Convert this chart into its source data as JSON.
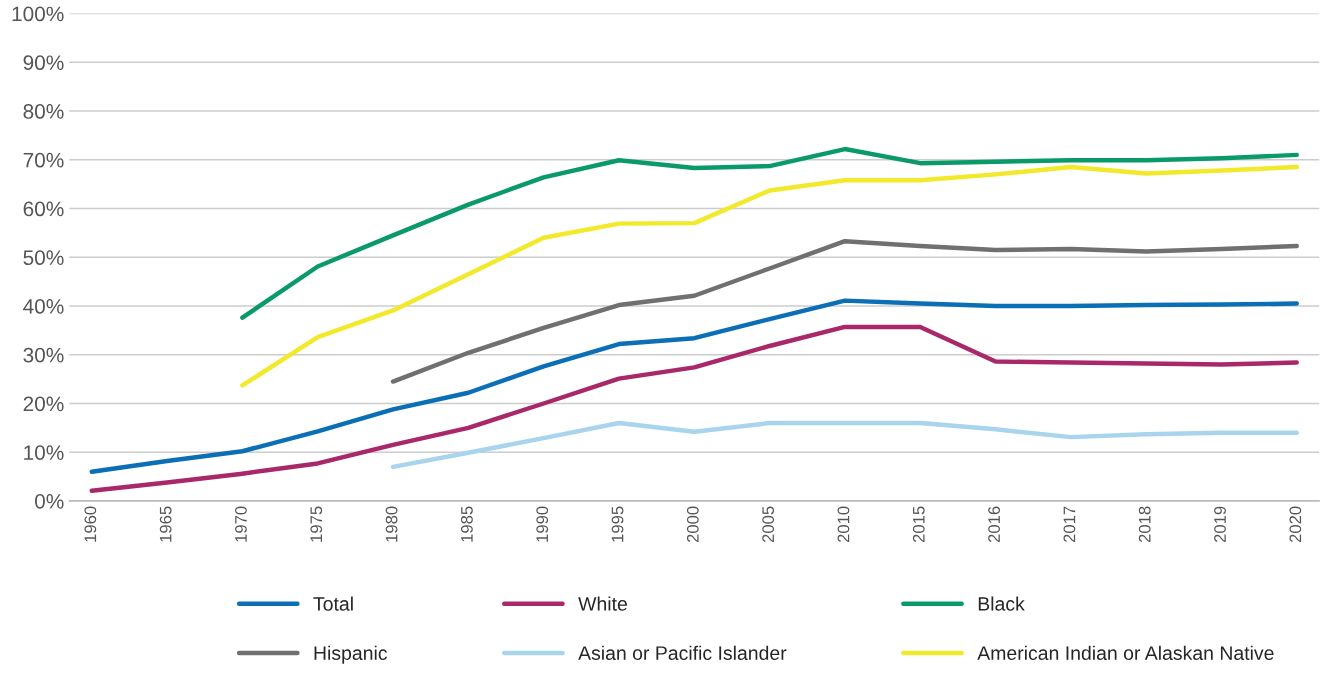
{
  "chart_data": {
    "type": "line",
    "categories": [
      "1960",
      "1965",
      "1970",
      "1975",
      "1980",
      "1985",
      "1990",
      "1995",
      "2000",
      "2005",
      "2010",
      "2015",
      "2016",
      "2017",
      "2018",
      "2019",
      "2020"
    ],
    "series": [
      {
        "name": "Total",
        "color": "#0a6fb5",
        "values": [
          6.0,
          8.2,
          10.2,
          14.3,
          18.8,
          22.2,
          27.6,
          32.2,
          33.4,
          37.3,
          41.1,
          40.5,
          40.0,
          40.0,
          40.2,
          40.3,
          40.5
        ]
      },
      {
        "name": "White",
        "color": "#a9286a",
        "values": [
          2.1,
          3.8,
          5.6,
          7.7,
          11.5,
          15.0,
          20.0,
          25.1,
          27.4,
          31.8,
          35.7,
          35.7,
          28.6,
          28.4,
          28.2,
          28.0,
          28.4
        ]
      },
      {
        "name": "Black",
        "color": "#0a9a6a",
        "values": [
          null,
          null,
          37.6,
          48.1,
          54.5,
          60.8,
          66.4,
          69.9,
          68.3,
          68.7,
          72.2,
          69.3,
          69.6,
          69.9,
          69.9,
          70.3,
          71.0
        ]
      },
      {
        "name": "Hispanic",
        "color": "#707070",
        "values": [
          null,
          null,
          null,
          null,
          24.5,
          30.4,
          35.5,
          40.2,
          42.1,
          47.7,
          53.3,
          52.3,
          51.5,
          51.7,
          51.2,
          51.7,
          52.3
        ]
      },
      {
        "name": "Asian or Pacific Islander",
        "color": "#a8d4ee",
        "values": [
          null,
          null,
          null,
          null,
          7.0,
          9.9,
          12.9,
          16.0,
          14.2,
          16.0,
          16.0,
          16.0,
          14.7,
          13.1,
          13.7,
          14.0,
          14.0
        ]
      },
      {
        "name": "American Indian or Alaskan Native",
        "color": "#f1e92a",
        "values": [
          null,
          null,
          23.7,
          33.6,
          39.1,
          46.5,
          54.0,
          56.9,
          57.0,
          63.7,
          65.8,
          65.8,
          67.0,
          68.5,
          67.2,
          67.8,
          68.5
        ]
      }
    ],
    "ylim": [
      0,
      100
    ],
    "yticks": [
      {
        "value": 0,
        "label": "0%"
      },
      {
        "value": 10,
        "label": "10%"
      },
      {
        "value": 20,
        "label": "20%"
      },
      {
        "value": 30,
        "label": "30%"
      },
      {
        "value": 40,
        "label": "40%"
      },
      {
        "value": 50,
        "label": "50%"
      },
      {
        "value": 60,
        "label": "60%"
      },
      {
        "value": 70,
        "label": "70%"
      },
      {
        "value": 80,
        "label": "80%"
      },
      {
        "value": 90,
        "label": "90%"
      },
      {
        "value": 100,
        "label": "100%"
      }
    ],
    "grid": "y",
    "legend": "bottom",
    "marker": "none",
    "line_style": "solid"
  }
}
